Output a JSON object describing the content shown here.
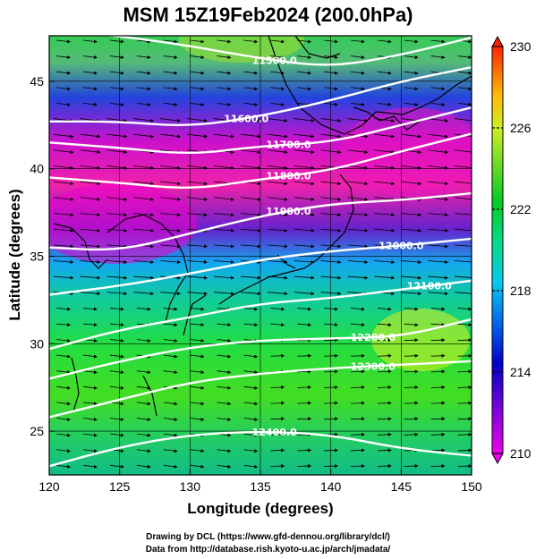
{
  "title": "MSM 15Z19Feb2024 (200.0hPa)",
  "xlabel": "Longitude (degrees)",
  "ylabel": "Latitude  (degrees)",
  "x_ticks": [
    "120",
    "125",
    "130",
    "135",
    "140",
    "145",
    "150"
  ],
  "y_ticks": [
    "25",
    "30",
    "35",
    "40",
    "45"
  ],
  "colorbar_ticks": [
    "230",
    "226",
    "222",
    "218",
    "214",
    "210"
  ],
  "contour_labels": [
    "11500.0",
    "11600.0",
    "11700.0",
    "11800.0",
    "11900.0",
    "12000.0",
    "12100.0",
    "12200.0",
    "12300.0",
    "12400.0"
  ],
  "credit_line1": "Drawing by DCL (https://www.gfd-dennou.org/library/dcl/)",
  "credit_line2": "Data from http://database.rish.kyoto-u.ac.jp/arch/jmadata/",
  "chart_data": {
    "type": "heatmap",
    "title": "MSM 15Z19Feb2024 (200.0hPa)",
    "xlabel": "Longitude (degrees)",
    "ylabel": "Latitude  (degrees)",
    "xlim": [
      120,
      150
    ],
    "ylim": [
      22.5,
      47.6
    ],
    "colorbar_range": [
      210,
      230
    ],
    "colorbar_ticks": [
      210,
      214,
      218,
      222,
      226,
      230
    ],
    "contours": [
      {
        "label": "11500.0",
        "lat_at_lon": [
          [
            120,
            48.0
          ],
          [
            128,
            47.3
          ],
          [
            135,
            46.3
          ],
          [
            140,
            45.8
          ],
          [
            145,
            46.5
          ],
          [
            150,
            47.5
          ]
        ]
      },
      {
        "label": "11600.0",
        "lat_at_lon": [
          [
            120,
            42.7
          ],
          [
            125,
            42.7
          ],
          [
            130,
            42.4
          ],
          [
            135,
            43.0
          ],
          [
            140,
            43.9
          ],
          [
            145,
            45.0
          ],
          [
            150,
            45.8
          ]
        ]
      },
      {
        "label": "11700.0",
        "lat_at_lon": [
          [
            120,
            41.5
          ],
          [
            125,
            41.2
          ],
          [
            130,
            40.8
          ],
          [
            135,
            41.3
          ],
          [
            140,
            41.5
          ],
          [
            145,
            42.5
          ],
          [
            150,
            43.5
          ]
        ]
      },
      {
        "label": "11800.0",
        "lat_at_lon": [
          [
            120,
            39.5
          ],
          [
            125,
            39.2
          ],
          [
            130,
            38.8
          ],
          [
            135,
            39.4
          ],
          [
            140,
            39.9
          ],
          [
            145,
            41.0
          ],
          [
            150,
            42.0
          ]
        ]
      },
      {
        "label": "11900.0",
        "lat_at_lon": [
          [
            120,
            35.5
          ],
          [
            125,
            35.3
          ],
          [
            130,
            36.3
          ],
          [
            135,
            37.3
          ],
          [
            140,
            38.0
          ],
          [
            145,
            38.2
          ],
          [
            150,
            38.6
          ]
        ]
      },
      {
        "label": "12000.0",
        "lat_at_lon": [
          [
            120,
            32.8
          ],
          [
            125,
            33.3
          ],
          [
            130,
            34.0
          ],
          [
            135,
            34.8
          ],
          [
            140,
            35.3
          ],
          [
            145,
            35.6
          ],
          [
            150,
            36.0
          ]
        ]
      },
      {
        "label": "12100.0",
        "lat_at_lon": [
          [
            120,
            29.7
          ],
          [
            125,
            30.8
          ],
          [
            130,
            31.5
          ],
          [
            135,
            32.3
          ],
          [
            140,
            32.6
          ],
          [
            145,
            33.1
          ],
          [
            150,
            33.6
          ]
        ]
      },
      {
        "label": "12200.0",
        "lat_at_lon": [
          [
            120,
            28.0
          ],
          [
            125,
            29.0
          ],
          [
            130,
            29.8
          ],
          [
            135,
            30.2
          ],
          [
            140,
            30.3
          ],
          [
            145,
            30.4
          ],
          [
            150,
            31.4
          ]
        ]
      },
      {
        "label": "12300.0",
        "lat_at_lon": [
          [
            120,
            25.8
          ],
          [
            125,
            26.8
          ],
          [
            130,
            27.8
          ],
          [
            135,
            28.3
          ],
          [
            140,
            28.6
          ],
          [
            145,
            28.8
          ],
          [
            150,
            29.0
          ]
        ]
      },
      {
        "label": "12400.0",
        "lat_at_lon": [
          [
            120,
            23.0
          ],
          [
            125,
            24.1
          ],
          [
            130,
            24.8
          ],
          [
            135,
            25.0
          ],
          [
            140,
            24.8
          ],
          [
            145,
            24.0
          ],
          [
            150,
            23.6
          ]
        ]
      }
    ],
    "wind_field": "westerly",
    "grid": true
  },
  "colors": {
    "contour": "#ffffff",
    "arrows": "#000000",
    "colormap": [
      "#ff00ff",
      "#0000cc",
      "#00ccff",
      "#00dd44",
      "#ccee22",
      "#ffaa00",
      "#ff3300"
    ]
  }
}
